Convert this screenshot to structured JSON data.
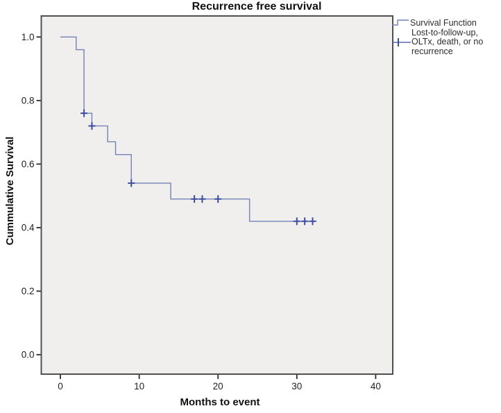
{
  "figure": {
    "title": "Recurrence free survival",
    "x_axis_label": "Months to event",
    "y_axis_label": "Cummulative Survival"
  },
  "legend": {
    "items": [
      {
        "label": "Survival Function",
        "marker": "step-line-icon"
      },
      {
        "label": "Lost-to-follow-up, OLTx, death, or no recurrence",
        "marker": "censored-plus-icon",
        "lines": [
          "Lost-to-follow-up,",
          "OLTx, death, or no",
          "recurrence"
        ]
      }
    ]
  },
  "chart_data": {
    "type": "line",
    "variant": "kaplan-meier-step",
    "title": "Recurrence free survival",
    "xlabel": "Months to event",
    "ylabel": "Cummulative Survival",
    "xticks": [
      0,
      10,
      20,
      30,
      40
    ],
    "ytick_labels": [
      "0.0",
      "0.2",
      "0.4",
      "0.6",
      "0.8",
      "1.0"
    ],
    "xlim": [
      -2.4,
      42.2
    ],
    "ylim": [
      -0.06,
      1.07
    ],
    "grid": false,
    "legend_position": "top-right-outside",
    "survival_steps": [
      {
        "month": 0,
        "survival": 1.0
      },
      {
        "month": 2,
        "survival": 0.96
      },
      {
        "month": 3,
        "survival": 0.76
      },
      {
        "month": 4,
        "survival": 0.72
      },
      {
        "month": 6,
        "survival": 0.67
      },
      {
        "month": 7,
        "survival": 0.63
      },
      {
        "month": 9,
        "survival": 0.54
      },
      {
        "month": 14,
        "survival": 0.49
      },
      {
        "month": 24,
        "survival": 0.42
      }
    ],
    "curve_end_month": 32.5,
    "censored_points": [
      {
        "month": 3,
        "survival": 0.76
      },
      {
        "month": 4,
        "survival": 0.72
      },
      {
        "month": 9,
        "survival": 0.54
      },
      {
        "month": 17,
        "survival": 0.49
      },
      {
        "month": 18,
        "survival": 0.49
      },
      {
        "month": 20,
        "survival": 0.49
      },
      {
        "month": 30,
        "survival": 0.42
      },
      {
        "month": 31,
        "survival": 0.42
      },
      {
        "month": 32,
        "survival": 0.42
      }
    ],
    "colors": {
      "curve": "#7381B5",
      "censor_marks": "#3A4DA0",
      "plot_background": "#F0EFEE",
      "plot_frame": "#4F4F4F",
      "text": "#1E1E1E"
    }
  }
}
